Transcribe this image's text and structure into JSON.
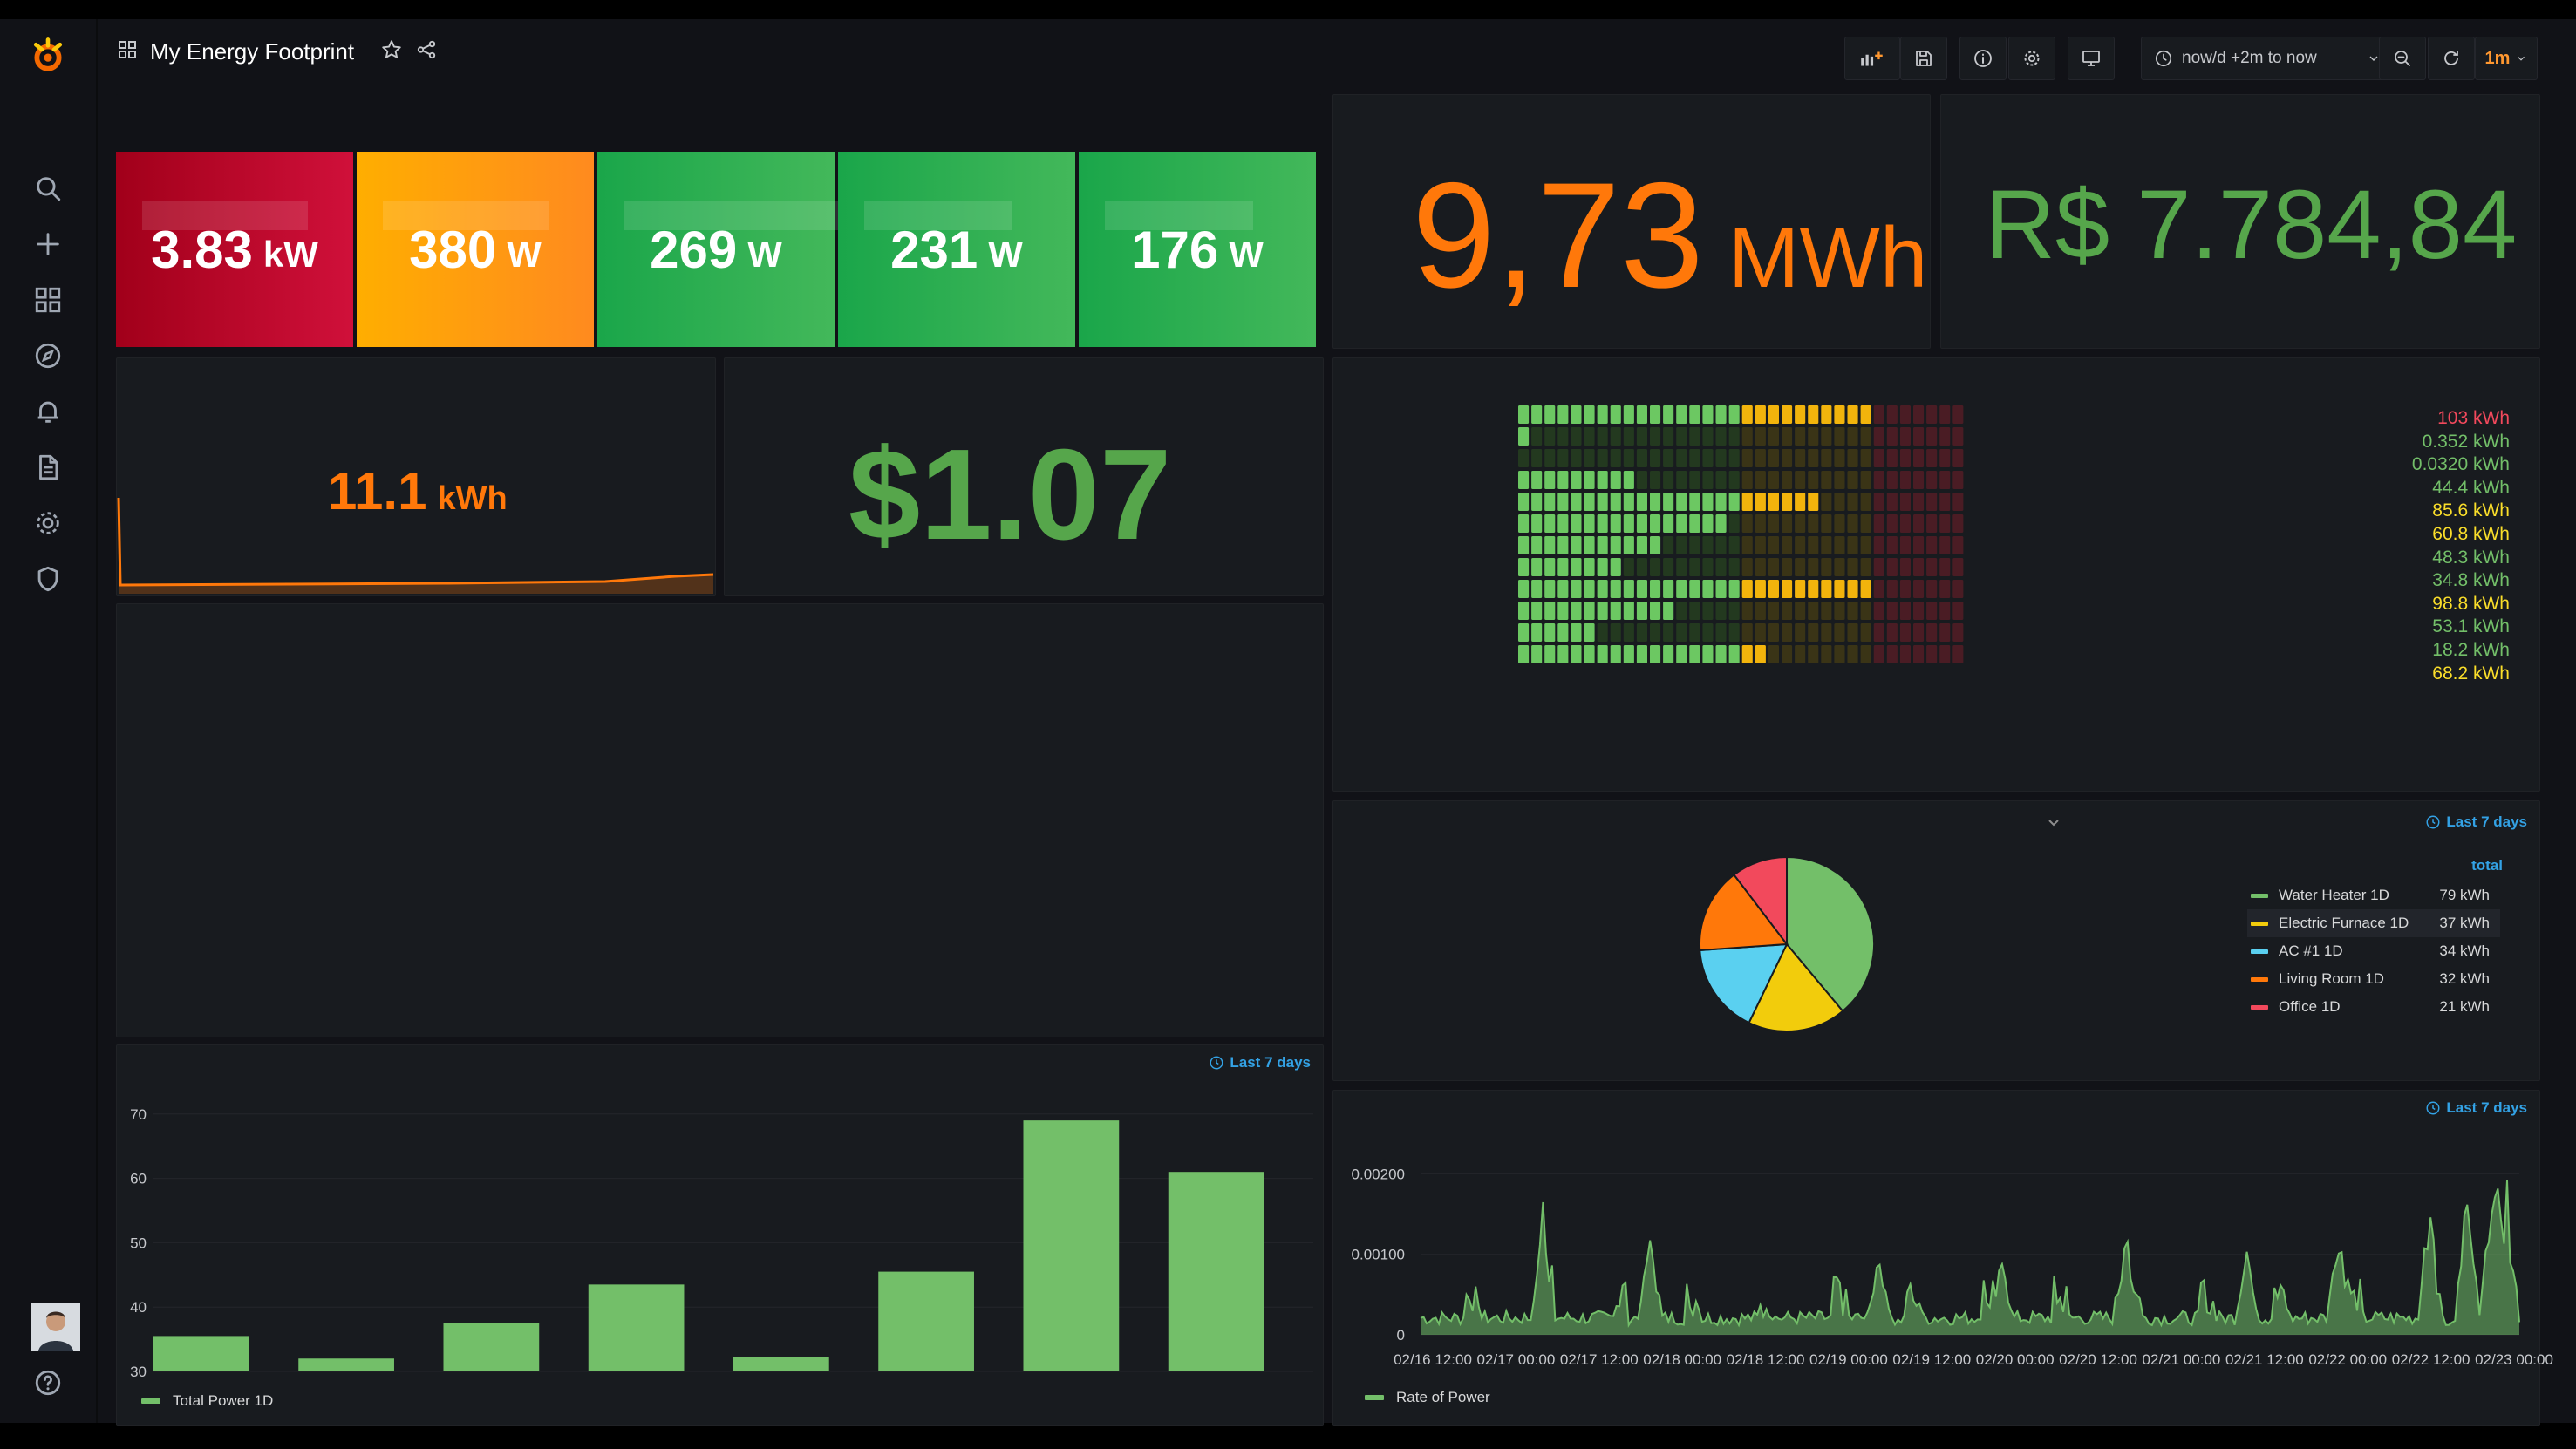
{
  "header": {
    "title": "My Energy Footprint",
    "time_range": "now/d +2m to now",
    "refresh": "1m"
  },
  "stats": [
    {
      "value": "3.83",
      "unit": "kW",
      "bg": "#c4162a"
    },
    {
      "value": "380",
      "unit": "W",
      "bg": "#ff9830"
    },
    {
      "value": "269",
      "unit": "W",
      "bg": "#37b24d"
    },
    {
      "value": "231",
      "unit": "W",
      "bg": "#37b24d"
    },
    {
      "value": "176",
      "unit": "W",
      "bg": "#37b24d"
    }
  ],
  "energy_total": {
    "value": "9,73",
    "unit": "MWh",
    "color": "#ff780a"
  },
  "cost_brl": {
    "value": "R$ 7.784,84",
    "color": "#56a64b"
  },
  "energy_today": {
    "value": "11.1",
    "unit": "kWh",
    "color": "#ff780a"
  },
  "cost_usd": {
    "value": "$1.07",
    "color": "#56a64b"
  },
  "honeycomb_legend": [
    {
      "text": "103 kWh",
      "color": "#f2495c"
    },
    {
      "text": "0.352 kWh",
      "color": "#73bf69"
    },
    {
      "text": "0.0320 kWh",
      "color": "#73bf69"
    },
    {
      "text": "44.4 kWh",
      "color": "#73bf69"
    },
    {
      "text": "85.6 kWh",
      "color": "#fade2a"
    },
    {
      "text": "60.8 kWh",
      "color": "#fade2a"
    },
    {
      "text": "48.3 kWh",
      "color": "#73bf69"
    },
    {
      "text": "34.8 kWh",
      "color": "#73bf69"
    },
    {
      "text": "98.8 kWh",
      "color": "#fade2a"
    },
    {
      "text": "53.1 kWh",
      "color": "#73bf69"
    },
    {
      "text": "18.2 kWh",
      "color": "#73bf69"
    },
    {
      "text": "68.2 kWh",
      "color": "#fade2a"
    }
  ],
  "pie_panel": {
    "time_badge": "Last 7 days",
    "legend_header": "total",
    "items": [
      {
        "name": "Water Heater 1D",
        "value": "79 kWh",
        "color": "#73bf69"
      },
      {
        "name": "Electric Furnace 1D",
        "value": "37 kWh",
        "color": "#f2cc0c"
      },
      {
        "name": "AC #1 1D",
        "value": "34 kWh",
        "color": "#5ad0f0"
      },
      {
        "name": "Living Room 1D",
        "value": "32 kWh",
        "color": "#ff780a"
      },
      {
        "name": "Office 1D",
        "value": "21 kWh",
        "color": "#f2495c"
      }
    ]
  },
  "bar_panel": {
    "time_badge": "Last 7 days",
    "legend": "Total Power 1D",
    "color": "#73bf69"
  },
  "line_panel": {
    "time_badge": "Last 7 days",
    "legend": "Rate of Power",
    "color": "#73bf69"
  },
  "chart_data": [
    {
      "type": "bar",
      "title": "",
      "series": [
        {
          "name": "Total Power 1D",
          "values": [
            35.5,
            32,
            37.5,
            43.5,
            32.2,
            45.5,
            69,
            61
          ]
        }
      ],
      "ylim": [
        30,
        72
      ],
      "yticks": [
        "30",
        "40",
        "50",
        "60",
        "70"
      ]
    },
    {
      "type": "area",
      "title": "",
      "series": [
        {
          "name": "Rate of Power"
        }
      ],
      "ylim": [
        0,
        0.0026
      ],
      "yticks": [
        "0",
        "0.00100",
        "0.00200"
      ],
      "xticks": [
        "02/16 12:00",
        "02/17 00:00",
        "02/17 12:00",
        "02/18 00:00",
        "02/18 12:00",
        "02/19 00:00",
        "02/19 12:00",
        "02/20 00:00",
        "02/20 12:00",
        "02/21 00:00",
        "02/21 12:00",
        "02/22 00:00",
        "02/22 12:00",
        "02/23 00:00"
      ]
    },
    {
      "type": "pie",
      "series": [
        {
          "name": "total",
          "labels": [
            "Water Heater 1D",
            "Electric Furnace 1D",
            "AC #1 1D",
            "Living Room 1D",
            "Office 1D"
          ],
          "values": [
            79,
            37,
            34,
            32,
            21
          ]
        }
      ]
    }
  ]
}
